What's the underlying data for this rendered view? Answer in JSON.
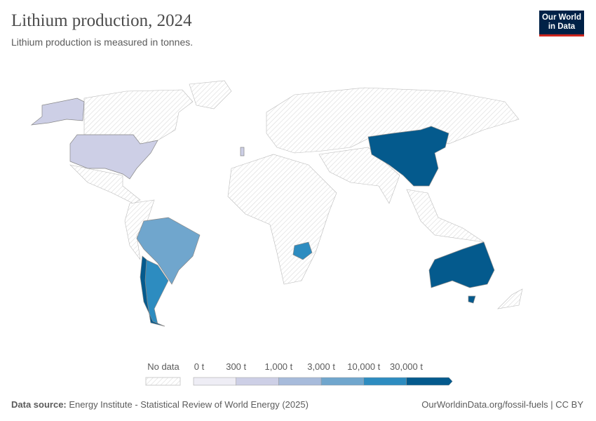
{
  "header": {
    "title": "Lithium production, 2024",
    "subtitle": "Lithium production is measured in tonnes.",
    "logo_text": "Our World in Data"
  },
  "colors": {
    "no_data": "#ffffff",
    "bin0": "#eeedf5",
    "bin1": "#cdcfe6",
    "bin2": "#a7bbdb",
    "bin3": "#70a6cd",
    "bin4": "#2d8cc0",
    "bin5": "#045a8d",
    "border": "#a0a0a0"
  },
  "map": {
    "countries": [
      {
        "name": "United States",
        "bin": "300 t – 1,000 t"
      },
      {
        "name": "Brazil",
        "bin": "3,000 t – 10,000 t"
      },
      {
        "name": "Argentina",
        "bin": "10,000 t – 30,000 t"
      },
      {
        "name": "Zimbabwe",
        "bin": "10,000 t – 30,000 t"
      },
      {
        "name": "Chile",
        "bin": "> 30,000 t"
      },
      {
        "name": "China",
        "bin": "> 30,000 t"
      },
      {
        "name": "Australia",
        "bin": "> 30,000 t"
      },
      {
        "name": "Portugal",
        "bin": "300 t – 1,000 t"
      }
    ]
  },
  "legend": {
    "no_data": "No data",
    "ticks": [
      "0 t",
      "300 t",
      "1,000 t",
      "3,000 t",
      "10,000 t",
      "30,000 t"
    ]
  },
  "footer": {
    "source_label": "Data source:",
    "source": "Energy Institute - Statistical Review of World Energy (2025)",
    "link": "OurWorldinData.org/fossil-fuels | CC BY"
  }
}
